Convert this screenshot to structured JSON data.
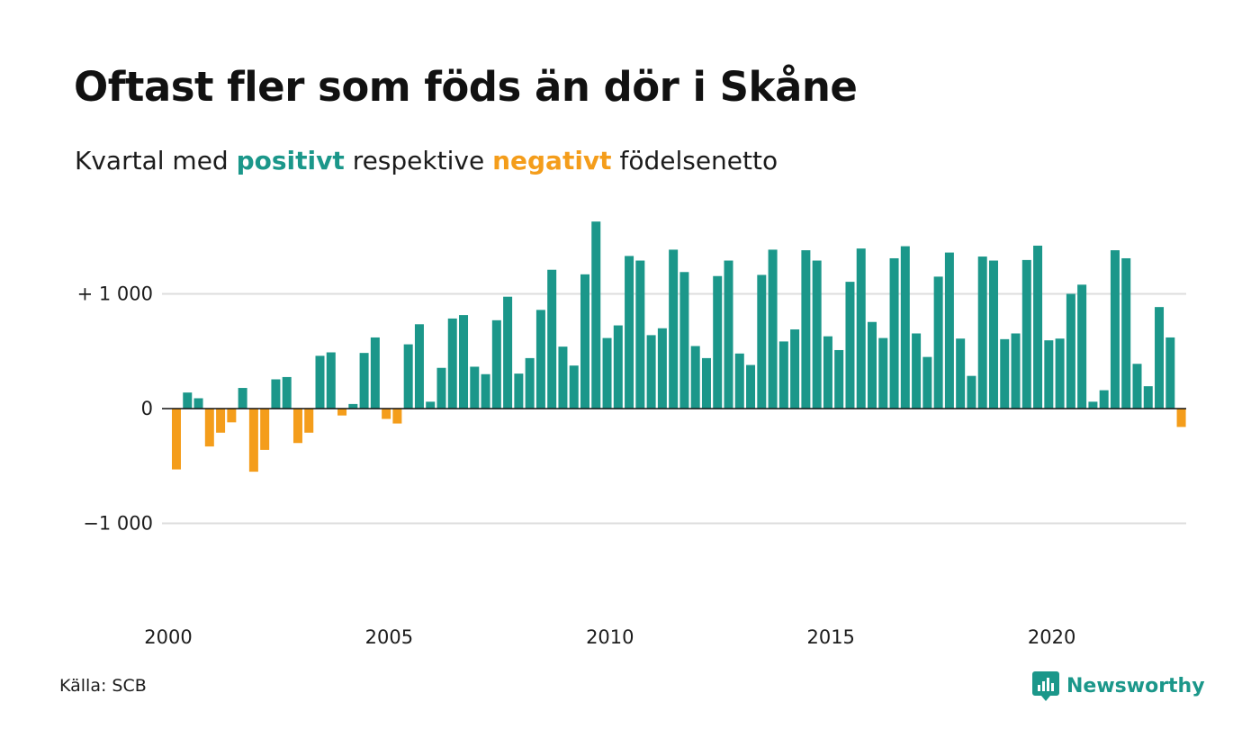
{
  "title": "Oftast fler som föds än dör i Skåne",
  "subtitle": {
    "prefix": "Kvartal med",
    "positive": "positivt",
    "middle": "respektive",
    "negative": "negativt",
    "suffix": "födelsenetto"
  },
  "source": "Källa: SCB",
  "brand": {
    "name": "Newsworthy",
    "icon": "newsworthy-logo-icon"
  },
  "colors": {
    "positive": "#1b978a",
    "negative": "#f49d1b",
    "grid": "#dddddd",
    "zero_line": "#111111"
  },
  "chart_data": {
    "type": "bar",
    "x_start": "2000 Q1",
    "frequency": "quarterly",
    "ylim": [
      -1500,
      1700
    ],
    "y_ticks": [
      {
        "value": 1000,
        "label": "+ 1 000"
      },
      {
        "value": 0,
        "label": "0"
      },
      {
        "value": -1000,
        "label": "−1 000"
      }
    ],
    "x_ticks": [
      "2000",
      "2005",
      "2010",
      "2015",
      "2020"
    ],
    "grid": true,
    "values": [
      -530,
      140,
      90,
      -330,
      -210,
      -120,
      180,
      -550,
      -360,
      255,
      275,
      -300,
      -210,
      460,
      490,
      -60,
      40,
      485,
      620,
      -90,
      -130,
      560,
      735,
      60,
      355,
      785,
      815,
      365,
      300,
      770,
      975,
      305,
      440,
      860,
      1210,
      540,
      375,
      1170,
      1630,
      615,
      725,
      1330,
      1290,
      640,
      700,
      1385,
      1190,
      545,
      440,
      1155,
      1290,
      480,
      380,
      1165,
      1385,
      585,
      690,
      1380,
      1290,
      630,
      510,
      1105,
      1395,
      755,
      615,
      1310,
      1415,
      655,
      450,
      1150,
      1360,
      610,
      285,
      1325,
      1290,
      605,
      655,
      1295,
      1420,
      595,
      610,
      1000,
      1080,
      60,
      160,
      1380,
      1310,
      390,
      195,
      885,
      620,
      -160
    ]
  }
}
